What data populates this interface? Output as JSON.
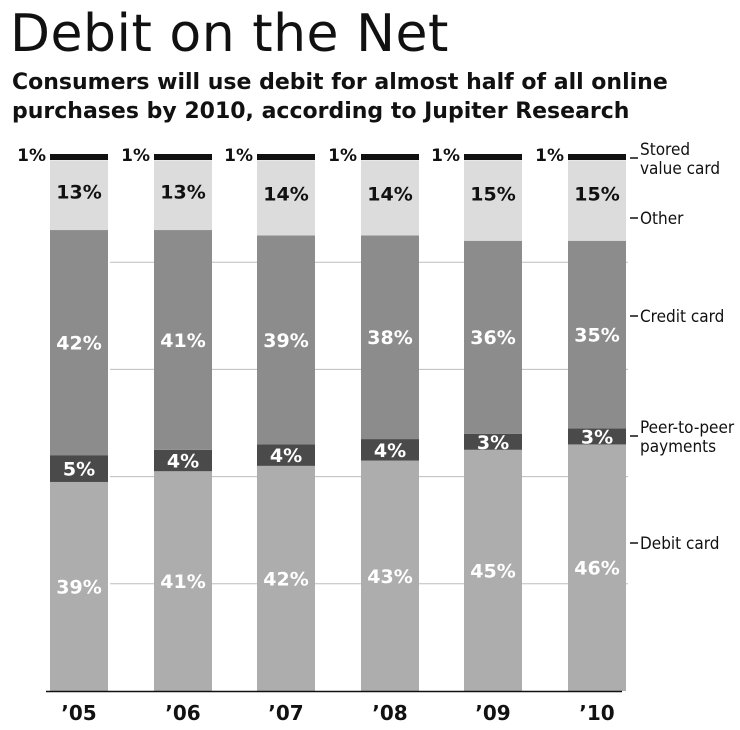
{
  "header": {
    "title": "Debit on the Net",
    "subtitle": "Consumers will use debit for almost half of all online purchases by 2010, according to Jupiter Research"
  },
  "chart_data": {
    "type": "bar",
    "stacked": true,
    "title": "Debit on the Net",
    "subtitle": "Consumers will use debit for almost half of all online purchases by 2010, according to Jupiter Research",
    "xlabel": "",
    "ylabel": "",
    "ylim": [
      0,
      100
    ],
    "grid": true,
    "legend": "right",
    "categories": [
      "’05",
      "’06",
      "’07",
      "’08",
      "’09",
      "’10"
    ],
    "series": [
      {
        "name": "Debit card",
        "values": [
          39,
          41,
          42,
          43,
          45,
          46
        ],
        "labels": [
          "39%",
          "41%",
          "42%",
          "43%",
          "45%",
          "46%"
        ],
        "color": "#adadad",
        "label_color": "#ffffff"
      },
      {
        "name": "Peer-to-peer payments",
        "values": [
          5,
          4,
          4,
          4,
          3,
          3
        ],
        "labels": [
          "5%",
          "4%",
          "4%",
          "4%",
          "3%",
          "3%"
        ],
        "color": "#4a4a4a",
        "label_color": "#ffffff"
      },
      {
        "name": "Credit card",
        "values": [
          42,
          41,
          39,
          38,
          36,
          35
        ],
        "labels": [
          "42%",
          "41%",
          "39%",
          "38%",
          "36%",
          "35%"
        ],
        "color": "#8c8c8c",
        "label_color": "#ffffff"
      },
      {
        "name": "Other",
        "values": [
          13,
          13,
          14,
          14,
          15,
          15
        ],
        "labels": [
          "13%",
          "13%",
          "14%",
          "14%",
          "15%",
          "15%"
        ],
        "color": "#dcdcdc",
        "label_color": "#111111"
      },
      {
        "name": "Stored value card",
        "values": [
          1,
          1,
          1,
          1,
          1,
          1
        ],
        "labels": [
          "1%",
          "1%",
          "1%",
          "1%",
          "1%",
          "1%"
        ],
        "color": "#111111",
        "label_color": "#111111"
      }
    ]
  }
}
